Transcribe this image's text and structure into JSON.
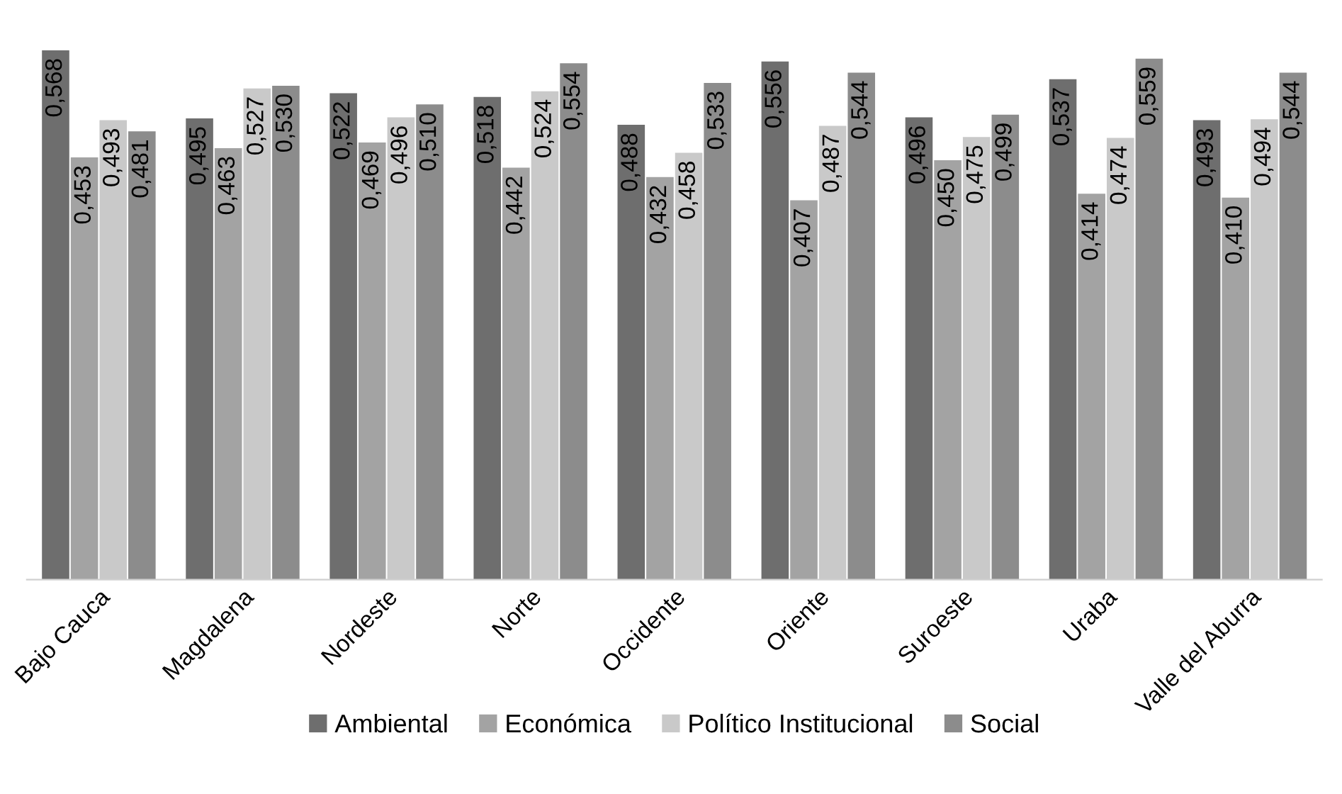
{
  "chart_data": {
    "type": "bar",
    "categories": [
      "Bajo Cauca",
      "Magdalena",
      "Nordeste",
      "Norte",
      "Occidente",
      "Oriente",
      "Suroeste",
      "Uraba",
      "Valle del Aburra"
    ],
    "series": [
      {
        "name": "Ambiental",
        "color": "#6e6e6e",
        "values": [
          0.568,
          0.495,
          0.522,
          0.518,
          0.488,
          0.556,
          0.496,
          0.537,
          0.493
        ],
        "value_labels": [
          "0,568",
          "0,495",
          "0,522",
          "0,518",
          "0,488",
          "0,556",
          "0,496",
          "0,537",
          "0,493"
        ]
      },
      {
        "name": "Económica",
        "color": "#a3a3a3",
        "values": [
          0.453,
          0.463,
          0.469,
          0.442,
          0.432,
          0.407,
          0.45,
          0.414,
          0.41
        ],
        "value_labels": [
          "0,453",
          "0,463",
          "0,469",
          "0,442",
          "0,432",
          "0,407",
          "0,450",
          "0,414",
          "0,410"
        ]
      },
      {
        "name": "Político Institucional",
        "color": "#c9c9c9",
        "values": [
          0.493,
          0.527,
          0.496,
          0.524,
          0.458,
          0.487,
          0.475,
          0.474,
          0.494
        ],
        "value_labels": [
          "0,493",
          "0,527",
          "0,496",
          "0,524",
          "0,458",
          "0,487",
          "0,475",
          "0,474",
          "0,494"
        ]
      },
      {
        "name": "Social",
        "color": "#8c8c8c",
        "values": [
          0.481,
          0.53,
          0.51,
          0.554,
          0.533,
          0.544,
          0.499,
          0.559,
          0.544
        ],
        "value_labels": [
          "0,481",
          "0,530",
          "0,510",
          "0,554",
          "0,533",
          "0,544",
          "0,499",
          "0,559",
          "0,544"
        ]
      }
    ],
    "legend": "bottom",
    "grid": false,
    "tick_labels": "x"
  }
}
